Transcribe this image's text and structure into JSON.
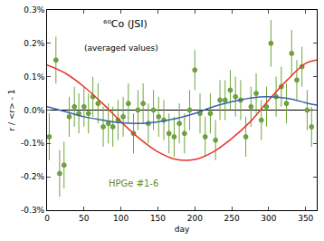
{
  "chart_data": {
    "type": "scatter",
    "x_label": "day",
    "y_label": "r / <r> - 1",
    "annotations": [
      "⁶⁰Co (JSI)",
      "(averaged values)",
      "HPGe #1-6"
    ],
    "annotation_colors": [
      "#000000",
      "#000000",
      "#6b8e23"
    ],
    "xlim": [
      0,
      365
    ],
    "xticks": [
      0,
      50,
      100,
      150,
      200,
      250,
      300,
      350
    ],
    "ylim": [
      -0.3,
      0.3
    ],
    "yticks": [
      {
        "value": -0.3,
        "label": "-0.3%"
      },
      {
        "value": -0.2,
        "label": "-0.2%"
      },
      {
        "value": -0.1,
        "label": "-0.1%"
      },
      {
        "value": 0,
        "label": "0.0%"
      },
      {
        "value": 0.1,
        "label": "0.1%"
      },
      {
        "value": 0.2,
        "label": "0.2%"
      },
      {
        "value": 0.3,
        "label": "0.3%"
      }
    ],
    "grid": false,
    "series": [
      {
        "type": "scatter",
        "marker": "circle",
        "color": "#6fa63a",
        "x": [
          3,
          12,
          17,
          23,
          30,
          37,
          43,
          50,
          56,
          62,
          69,
          76,
          83,
          89,
          96,
          103,
          110,
          117,
          123,
          130,
          137,
          144,
          151,
          158,
          165,
          172,
          179,
          186,
          193,
          200,
          207,
          214,
          221,
          228,
          234,
          241,
          248,
          255,
          262,
          269,
          276,
          283,
          290,
          297,
          303,
          310,
          317,
          324,
          331,
          338,
          345,
          352,
          358
        ],
        "values": [
          -0.08,
          0.15,
          -0.19,
          -0.165,
          -0.02,
          0.01,
          -0.01,
          0.01,
          -0.01,
          0.04,
          0.02,
          -0.05,
          -0.04,
          -0.05,
          -0.03,
          -0.02,
          0.02,
          -0.07,
          0.0,
          0.02,
          -0.04,
          0.0,
          -0.02,
          -0.03,
          -0.07,
          -0.08,
          -0.04,
          -0.07,
          0.0,
          0.12,
          -0.01,
          -0.08,
          -0.01,
          -0.09,
          0.03,
          0.03,
          0.06,
          0.04,
          0.03,
          -0.08,
          0.01,
          0.05,
          -0.03,
          0.01,
          0.2,
          0.04,
          0.07,
          0.02,
          0.17,
          0.09,
          0.13,
          0.0,
          -0.05
        ],
        "errors": [
          0.07,
          0.07,
          0.07,
          0.07,
          0.06,
          0.06,
          0.06,
          0.06,
          0.06,
          0.06,
          0.06,
          0.06,
          0.06,
          0.06,
          0.06,
          0.06,
          0.06,
          0.06,
          0.06,
          0.06,
          0.06,
          0.06,
          0.06,
          0.06,
          0.06,
          0.06,
          0.06,
          0.06,
          0.06,
          0.06,
          0.06,
          0.06,
          0.06,
          0.06,
          0.06,
          0.06,
          0.06,
          0.06,
          0.06,
          0.06,
          0.06,
          0.06,
          0.06,
          0.06,
          0.07,
          0.06,
          0.06,
          0.06,
          0.07,
          0.06,
          0.06,
          0.06,
          0.06
        ]
      },
      {
        "type": "line",
        "line_style": "solid",
        "color": "#e8352a",
        "x": [
          0,
          25,
          50,
          75,
          100,
          125,
          150,
          175,
          200,
          225,
          250,
          275,
          300,
          325,
          350,
          365
        ],
        "values": [
          0.135,
          0.11,
          0.07,
          0.02,
          -0.035,
          -0.085,
          -0.125,
          -0.148,
          -0.148,
          -0.125,
          -0.085,
          -0.035,
          0.03,
          0.09,
          0.14,
          0.15
        ]
      },
      {
        "type": "line",
        "line_style": "solid",
        "color": "#3a5fb0",
        "x": [
          0,
          25,
          50,
          75,
          100,
          125,
          150,
          175,
          200,
          225,
          250,
          275,
          300,
          325,
          350,
          365
        ],
        "values": [
          0.01,
          -0.005,
          -0.02,
          -0.03,
          -0.038,
          -0.04,
          -0.035,
          -0.025,
          -0.01,
          0.01,
          0.025,
          0.036,
          0.04,
          0.035,
          0.022,
          0.015
        ]
      }
    ]
  }
}
